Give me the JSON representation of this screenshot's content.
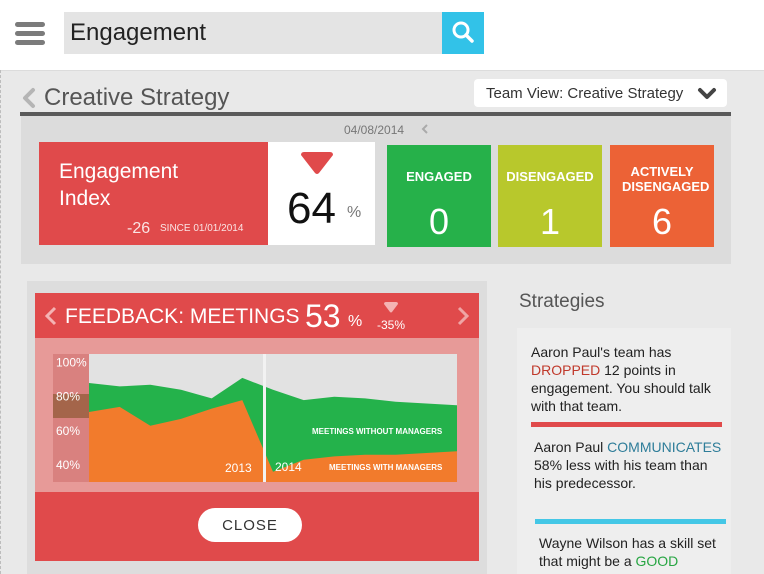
{
  "search": {
    "value": "Engagement"
  },
  "page": {
    "title": "Creative Strategy"
  },
  "team_view": {
    "label": "Team View: Creative Strategy"
  },
  "kpi": {
    "date": "04/08/2014",
    "engagement_index": {
      "title": "Engagement Index",
      "value": "64",
      "unit": "%",
      "delta": "-26",
      "since": "SINCE 01/01/2014"
    },
    "tiles": [
      {
        "label": "ENGAGED",
        "value": "0",
        "color": "#26b14a"
      },
      {
        "label": "DISENGAGED",
        "value": "1",
        "color": "#b8c82c"
      },
      {
        "label": "ACTIVELY DISENGAGED",
        "value": "6",
        "color": "#ec6236"
      }
    ]
  },
  "feedback": {
    "title": "FEEDBACK: MEETINGS",
    "percent": "53",
    "unit": "%",
    "delta": "-35%",
    "close_label": "CLOSE"
  },
  "chart_data": {
    "type": "area",
    "x": [
      0,
      1,
      2,
      3,
      4,
      5,
      6,
      7,
      8,
      9,
      10,
      11,
      12
    ],
    "x_labels": [
      "2013",
      "2014"
    ],
    "y_ticks": [
      "100%",
      "80%",
      "60%",
      "40%"
    ],
    "ylim": [
      30,
      105
    ],
    "series": [
      {
        "name": "MEETINGS WITHOUT MANAGERS",
        "color": "#24b24b",
        "values": [
          88,
          86,
          87,
          84,
          79,
          91,
          84,
          78,
          80,
          79,
          77,
          76,
          75
        ]
      },
      {
        "name": "MEETINGS WITH MANAGERS",
        "color": "#f27b2c",
        "values": [
          71,
          74,
          63,
          67,
          73,
          78,
          36,
          43,
          45,
          46,
          46,
          47,
          48
        ]
      }
    ]
  },
  "strategies": {
    "title": "Strategies",
    "cards": [
      {
        "pre": "Aaron Paul's team has ",
        "hl": "DROPPED",
        "post": " 12 points in engagement. You should talk with that team.",
        "color": "#e04a4b"
      },
      {
        "pre": "Aaron Paul ",
        "hl": "COMMUNICATES",
        "post": " 58% less with his team than his predecessor.",
        "color": "#44c7e6"
      },
      {
        "pre": "Wayne Wilson has a skill set that might be a ",
        "hl": "GOOD",
        "post": "",
        "color": "#26b14a"
      }
    ]
  },
  "colors": {
    "accent_red": "#e04a4b",
    "search_blue": "#32c2e8"
  }
}
